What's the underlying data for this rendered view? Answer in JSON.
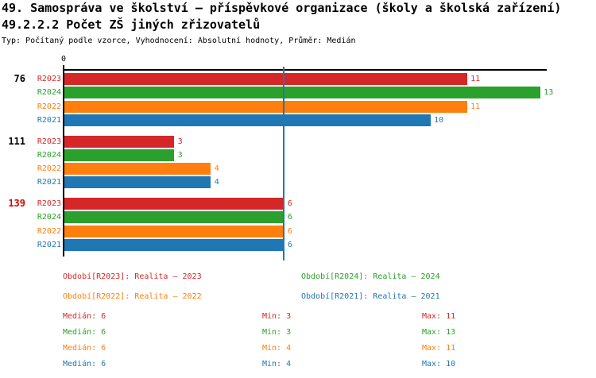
{
  "header": {
    "title": "49. Samospráva ve školství – příspěvkové organizace (školy a školská zařízení)",
    "subtitle": "49.2.2.2 Počet ZŠ jiných zřizovatelů",
    "meta": "Typ: Počítaný podle vzorce, Vyhodnocení: Absolutní hodnoty, Průměr: Medián"
  },
  "colors": {
    "R2023": "#d62728",
    "R2024": "#2ca02c",
    "R2022": "#ff7f0e",
    "R2021": "#1f77b4",
    "axis": "#000000",
    "median_line": "#1f77b4",
    "highlight_group": "#dd0000"
  },
  "chart_data": {
    "type": "bar",
    "orientation": "horizontal",
    "title": "49.2.2.2 Počet ZŠ jiných zřizovatelů",
    "xlabel": "",
    "ylabel": "",
    "xlim": [
      0,
      13.2
    ],
    "grid": false,
    "axis_zero_label": "0",
    "median_line_value": 6,
    "series_order": [
      "R2023",
      "R2024",
      "R2022",
      "R2021"
    ],
    "groups": [
      {
        "label": "76",
        "highlighted": false,
        "values": {
          "R2023": 11,
          "R2024": 13,
          "R2022": 11,
          "R2021": 10
        }
      },
      {
        "label": "111",
        "highlighted": false,
        "values": {
          "R2023": 3,
          "R2024": 3,
          "R2022": 4,
          "R2021": 4
        }
      },
      {
        "label": "139",
        "highlighted": true,
        "values": {
          "R2023": 6,
          "R2024": 6,
          "R2022": 6,
          "R2021": 6
        }
      }
    ],
    "summary": [
      {
        "series": "R2023",
        "median": 6,
        "min": 3,
        "max": 11
      },
      {
        "series": "R2024",
        "median": 6,
        "min": 3,
        "max": 13
      },
      {
        "series": "R2022",
        "median": 6,
        "min": 4,
        "max": 11
      },
      {
        "series": "R2021",
        "median": 6,
        "min": 4,
        "max": 10
      }
    ]
  },
  "legend": {
    "items": [
      {
        "series": "R2023",
        "label": "Období[R2023]: Realita – 2023"
      },
      {
        "series": "R2024",
        "label": "Období[R2024]: Realita – 2024"
      },
      {
        "series": "R2022",
        "label": "Období[R2022]: Realita – 2022"
      },
      {
        "series": "R2021",
        "label": "Období[R2021]: Realita – 2021"
      }
    ]
  },
  "stats": {
    "rows": [
      {
        "series": "R2023",
        "median": "Medián: 6",
        "min": "Min: 3",
        "max": "Max: 11"
      },
      {
        "series": "R2024",
        "median": "Medián: 6",
        "min": "Min: 3",
        "max": "Max: 13"
      },
      {
        "series": "R2022",
        "median": "Medián: 6",
        "min": "Min: 4",
        "max": "Max: 11"
      },
      {
        "series": "R2021",
        "median": "Medián: 6",
        "min": "Min: 4",
        "max": "Max: 10"
      }
    ]
  }
}
